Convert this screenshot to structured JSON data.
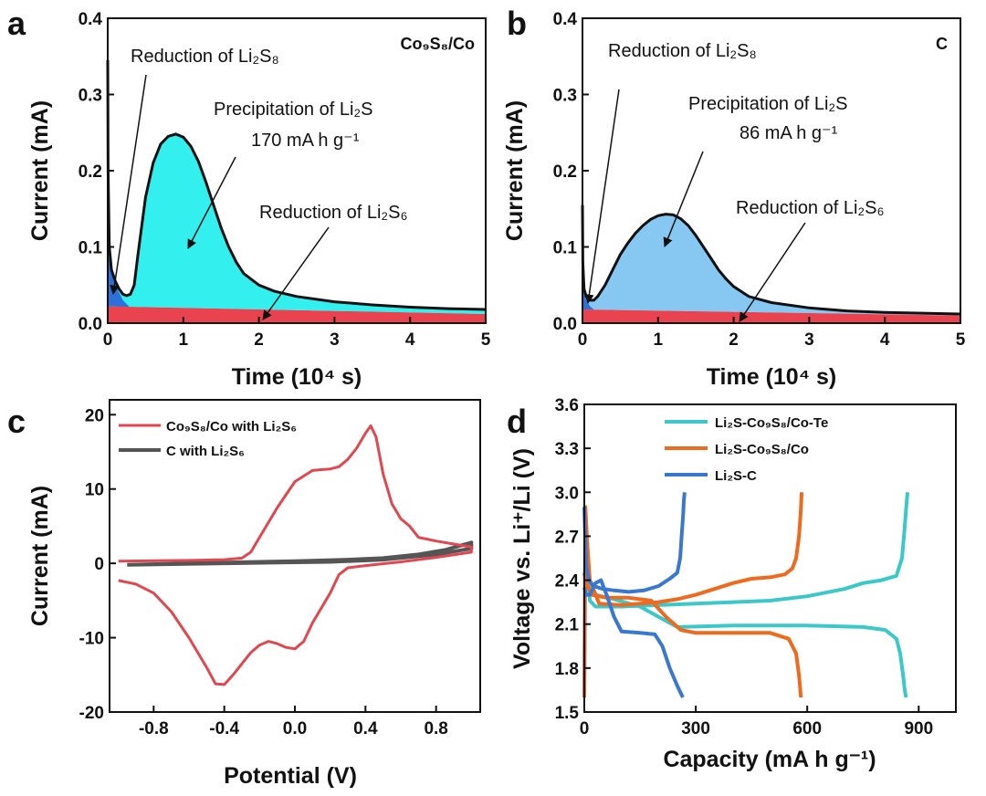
{
  "colors": {
    "cyan_area": "#33f0ee",
    "lightblue_area": "#86c8f2",
    "blue_area": "#2e6fd8",
    "red_area": "#e8434f",
    "black": "#111111",
    "cv_red": "#e0474f",
    "cv_gray": "#555555",
    "cd_cyan": "#3cc8c8",
    "cd_orange": "#ee6a1e",
    "cd_blue": "#3a78d0"
  },
  "panels": {
    "a": {
      "label": "a",
      "tag": "Co₉S₈/Co",
      "ann_li2s8": "Reduction of Li₂S₈",
      "ann_precip": "Precipitation of Li₂S",
      "ann_capacity": "170 mA h g⁻¹",
      "ann_li2s6": "Reduction of Li₂S₆"
    },
    "b": {
      "label": "b",
      "tag": "C",
      "ann_li2s8": "Reduction of Li₂S₈",
      "ann_precip": "Precipitation of Li₂S",
      "ann_capacity": "86 mA h g⁻¹",
      "ann_li2s6": "Reduction of Li₂S₆"
    },
    "c": {
      "label": "c"
    },
    "d": {
      "label": "d"
    }
  },
  "chart_data": [
    {
      "id": "a",
      "type": "area",
      "title": "",
      "xlabel": "Time (10⁴ s)",
      "ylabel": "Current (mA)",
      "xlim": [
        0,
        5
      ],
      "ylim": [
        0,
        0.4
      ],
      "xticks": [
        0,
        1,
        2,
        3,
        4,
        5
      ],
      "yticks": [
        0.0,
        0.1,
        0.2,
        0.3,
        0.4
      ],
      "ytick_labels": [
        "0.0",
        "0.1",
        "0.2",
        "0.3",
        "0.4"
      ],
      "curve": {
        "x": [
          0,
          0.005,
          0.02,
          0.05,
          0.1,
          0.15,
          0.2,
          0.25,
          0.3,
          0.35,
          0.4,
          0.5,
          0.6,
          0.7,
          0.8,
          0.9,
          1.0,
          1.1,
          1.2,
          1.3,
          1.4,
          1.5,
          1.6,
          1.7,
          1.8,
          2.0,
          2.2,
          2.5,
          3.0,
          3.5,
          4.0,
          4.5,
          5.0
        ],
        "y": [
          0.345,
          0.2,
          0.1,
          0.07,
          0.055,
          0.045,
          0.038,
          0.036,
          0.038,
          0.05,
          0.09,
          0.165,
          0.21,
          0.235,
          0.245,
          0.248,
          0.244,
          0.232,
          0.212,
          0.185,
          0.155,
          0.125,
          0.1,
          0.08,
          0.065,
          0.05,
          0.042,
          0.035,
          0.028,
          0.024,
          0.021,
          0.019,
          0.018
        ]
      },
      "li2s8_fill": {
        "x": [
          0,
          0.05,
          0.1,
          0.2,
          0.3
        ],
        "y": [
          0.095,
          0.065,
          0.05,
          0.03,
          0.02
        ]
      },
      "li2s6_baseline": {
        "x": [
          0,
          5
        ],
        "y": [
          0.022,
          0.012
        ]
      },
      "areas": [
        "Reduction of Li₂S₈",
        "Precipitation of Li₂S",
        "Reduction of Li₂S₆"
      ]
    },
    {
      "id": "b",
      "type": "area",
      "title": "",
      "xlabel": "Time (10⁴ s)",
      "ylabel": "Current (mA)",
      "xlim": [
        0,
        5
      ],
      "ylim": [
        0,
        0.4
      ],
      "xticks": [
        0,
        1,
        2,
        3,
        4,
        5
      ],
      "yticks": [
        0.0,
        0.1,
        0.2,
        0.3,
        0.4
      ],
      "ytick_labels": [
        "0.0",
        "0.1",
        "0.2",
        "0.3",
        "0.4"
      ],
      "curve": {
        "x": [
          0,
          0.005,
          0.02,
          0.05,
          0.1,
          0.15,
          0.2,
          0.3,
          0.4,
          0.5,
          0.6,
          0.7,
          0.8,
          0.9,
          1.0,
          1.1,
          1.2,
          1.3,
          1.4,
          1.5,
          1.6,
          1.7,
          1.8,
          1.9,
          2.0,
          2.2,
          2.5,
          3.0,
          3.5,
          4.0,
          4.5,
          5.0
        ],
        "y": [
          0.155,
          0.08,
          0.045,
          0.035,
          0.03,
          0.03,
          0.035,
          0.05,
          0.07,
          0.09,
          0.105,
          0.118,
          0.128,
          0.136,
          0.141,
          0.143,
          0.142,
          0.137,
          0.128,
          0.115,
          0.1,
          0.085,
          0.07,
          0.058,
          0.048,
          0.035,
          0.027,
          0.02,
          0.016,
          0.014,
          0.013,
          0.012
        ]
      },
      "li2s8_fill": {
        "x": [
          0,
          0.05,
          0.1,
          0.15
        ],
        "y": [
          0.045,
          0.03,
          0.022,
          0.018
        ]
      },
      "li2s6_baseline": {
        "x": [
          0,
          5
        ],
        "y": [
          0.018,
          0.01
        ]
      },
      "areas": [
        "Reduction of Li₂S₈",
        "Precipitation of Li₂S",
        "Reduction of Li₂S₆"
      ]
    },
    {
      "id": "c",
      "type": "line",
      "title": "",
      "xlabel": "Potential (V)",
      "ylabel": "Current (mA)",
      "xlim": [
        -1.05,
        1.05
      ],
      "ylim": [
        -20,
        22
      ],
      "xticks": [
        -0.8,
        -0.4,
        0.0,
        0.4,
        0.8
      ],
      "xtick_labels": [
        "-0.8",
        "-0.4",
        "0.0",
        "0.4",
        "0.8"
      ],
      "yticks": [
        -20,
        -10,
        0,
        10,
        20
      ],
      "ytick_labels": [
        "-20",
        "-10",
        "0",
        "10",
        "20"
      ],
      "legend": "top-left",
      "series": [
        {
          "name": "Co₉S₈/Co with Li₂S₆",
          "color": "#e0474f",
          "x": [
            -1.0,
            -0.6,
            -0.4,
            -0.3,
            -0.25,
            -0.2,
            -0.1,
            0.0,
            0.1,
            0.15,
            0.2,
            0.25,
            0.3,
            0.35,
            0.4,
            0.43,
            0.46,
            0.5,
            0.55,
            0.6,
            0.65,
            0.7,
            0.8,
            0.9,
            1.0,
            1.0,
            0.8,
            0.6,
            0.4,
            0.3,
            0.25,
            0.2,
            0.1,
            0.05,
            0.0,
            -0.05,
            -0.1,
            -0.15,
            -0.2,
            -0.25,
            -0.3,
            -0.35,
            -0.4,
            -0.45,
            -0.5,
            -0.6,
            -0.7,
            -0.8,
            -0.9,
            -1.0
          ],
          "y": [
            0.3,
            0.4,
            0.5,
            0.7,
            1.5,
            3.5,
            7.5,
            11.0,
            12.5,
            12.6,
            12.7,
            13.0,
            14.0,
            15.5,
            17.5,
            18.5,
            17.0,
            12.0,
            8.0,
            6.0,
            5.0,
            3.5,
            3.0,
            2.6,
            2.2,
            1.5,
            0.8,
            0.2,
            -0.3,
            -0.6,
            -1.5,
            -4.0,
            -8.0,
            -10.5,
            -11.5,
            -11.3,
            -10.8,
            -10.5,
            -11.0,
            -12.0,
            -13.5,
            -15.0,
            -16.3,
            -16.2,
            -14.0,
            -10.0,
            -6.5,
            -4.0,
            -2.8,
            -2.3
          ]
        },
        {
          "name": "C with Li₂S₆",
          "color": "#555555",
          "x": [
            -0.95,
            -0.6,
            -0.3,
            0.0,
            0.3,
            0.5,
            0.7,
            0.85,
            1.0,
            1.0,
            0.8,
            0.5,
            0.2,
            -0.1,
            -0.4,
            -0.7,
            -0.95
          ],
          "y": [
            -0.2,
            0.0,
            0.15,
            0.3,
            0.5,
            0.7,
            1.2,
            1.8,
            2.8,
            2.0,
            1.2,
            0.5,
            0.2,
            0.1,
            0.0,
            -0.1,
            -0.2
          ]
        }
      ]
    },
    {
      "id": "d",
      "type": "line",
      "title": "",
      "xlabel": "Capacity (mA h g⁻¹)",
      "ylabel": "Voltage vs. Li⁺/Li (V)",
      "xlim": [
        0,
        1000
      ],
      "ylim": [
        1.5,
        3.6
      ],
      "xticks": [
        0,
        300,
        600,
        900
      ],
      "xtick_labels": [
        "0",
        "300",
        "600",
        "900"
      ],
      "yticks": [
        1.5,
        1.8,
        2.1,
        2.4,
        2.7,
        3.0,
        3.3,
        3.6
      ],
      "ytick_labels": [
        "1.5",
        "1.8",
        "2.1",
        "2.4",
        "2.7",
        "3.0",
        "3.3",
        "3.6"
      ],
      "legend": "top-center",
      "series": [
        {
          "name": "Li₂S-Co₉S₈/Co-Te",
          "color": "#3cc8c8",
          "charge": {
            "x": [
              0,
              3,
              8,
              15,
              30,
              100,
              200,
              300,
              400,
              500,
              600,
              700,
              750,
              800,
              840,
              855,
              862,
              867,
              870
            ],
            "y": [
              1.6,
              2.6,
              2.5,
              2.26,
              2.22,
              2.22,
              2.23,
              2.24,
              2.25,
              2.26,
              2.29,
              2.34,
              2.38,
              2.4,
              2.43,
              2.55,
              2.75,
              2.92,
              3.0
            ]
          },
          "discharge": {
            "x": [
              0,
              5,
              10,
              30,
              80,
              150,
              200,
              250,
              400,
              600,
              750,
              810,
              840,
              850,
              858,
              863,
              866
            ],
            "y": [
              2.45,
              2.38,
              2.34,
              2.3,
              2.27,
              2.22,
              2.15,
              2.08,
              2.09,
              2.09,
              2.08,
              2.06,
              2.0,
              1.9,
              1.75,
              1.64,
              1.6
            ]
          }
        },
        {
          "name": "Li₂S-Co₉S₈/Co",
          "color": "#ee6a1e",
          "charge": {
            "x": [
              0,
              3,
              8,
              15,
              40,
              100,
              150,
              200,
              250,
              300,
              350,
              400,
              450,
              500,
              540,
              560,
              570,
              578,
              582,
              585
            ],
            "y": [
              1.6,
              2.9,
              2.65,
              2.4,
              2.24,
              2.23,
              2.24,
              2.25,
              2.27,
              2.3,
              2.34,
              2.38,
              2.41,
              2.42,
              2.44,
              2.48,
              2.55,
              2.7,
              2.85,
              3.0
            ]
          },
          "discharge": {
            "x": [
              0,
              5,
              20,
              60,
              120,
              180,
              220,
              260,
              300,
              400,
              500,
              550,
              570,
              578,
              583
            ],
            "y": [
              2.45,
              2.38,
              2.3,
              2.28,
              2.28,
              2.26,
              2.15,
              2.06,
              2.04,
              2.04,
              2.04,
              2.0,
              1.9,
              1.75,
              1.6
            ]
          }
        },
        {
          "name": "Li₂S-C",
          "color": "#3a78d0",
          "charge": {
            "x": [
              0,
              5,
              12,
              25,
              50,
              80,
              120,
              160,
              200,
              230,
              250,
              258,
              262,
              266,
              268,
              270
            ],
            "y": [
              2.9,
              2.5,
              2.4,
              2.36,
              2.34,
              2.33,
              2.32,
              2.33,
              2.36,
              2.41,
              2.45,
              2.55,
              2.7,
              2.85,
              2.95,
              3.0
            ]
          },
          "discharge": {
            "x": [
              0,
              5,
              15,
              30,
              45,
              60,
              80,
              100,
              150,
              190,
              210,
              230,
              250,
              265
            ],
            "y": [
              2.35,
              2.3,
              2.3,
              2.38,
              2.4,
              2.3,
              2.15,
              2.05,
              2.04,
              2.03,
              1.95,
              1.8,
              1.68,
              1.6
            ]
          }
        }
      ]
    }
  ]
}
